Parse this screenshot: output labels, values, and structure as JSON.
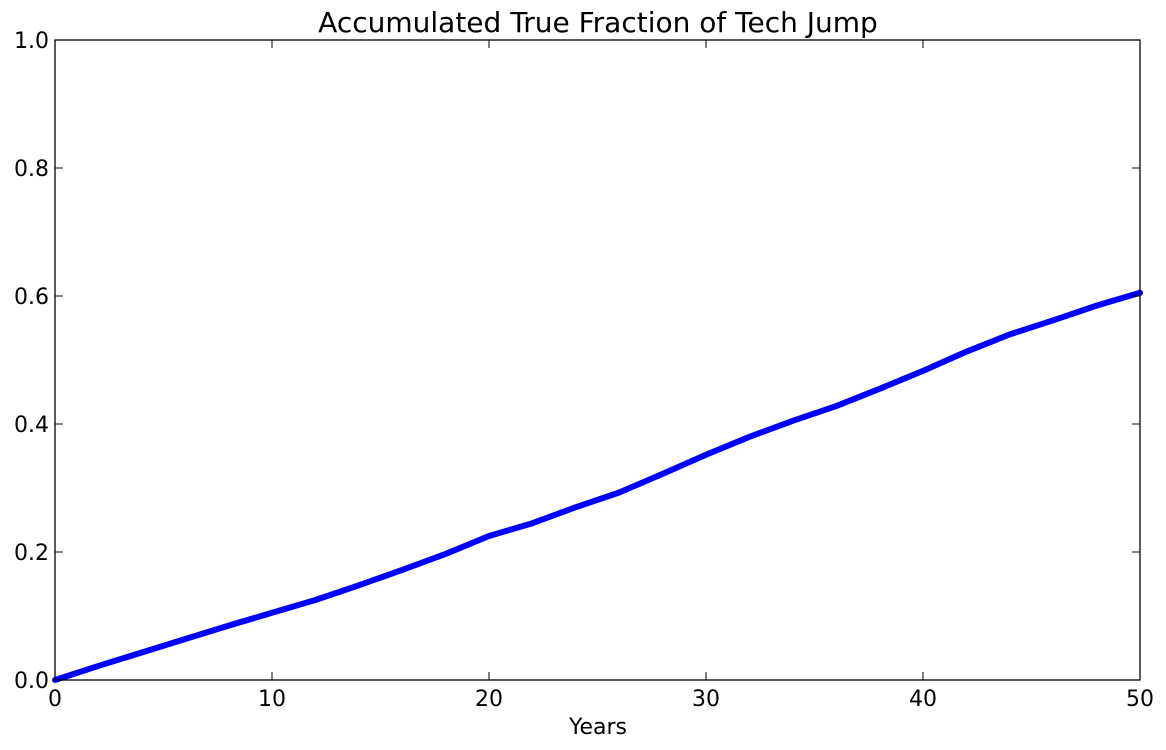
{
  "chart_data": {
    "type": "line",
    "title": "Accumulated True Fraction of Tech Jump",
    "xlabel": "Years",
    "ylabel": "",
    "xlim": [
      0,
      50
    ],
    "ylim": [
      0,
      1.0
    ],
    "x_ticks": [
      0,
      10,
      20,
      30,
      40,
      50
    ],
    "x_tick_labels": [
      "0",
      "10",
      "20",
      "30",
      "40",
      "50"
    ],
    "y_ticks": [
      0,
      0.2,
      0.4,
      0.6,
      0.8,
      1.0
    ],
    "y_tick_labels": [
      "0.0",
      "0.2",
      "0.4",
      "0.6",
      "0.8",
      "1.0"
    ],
    "grid": false,
    "series": [
      {
        "color": "#0000ff",
        "x": [
          0,
          2,
          4,
          6,
          8,
          10,
          12,
          14,
          16,
          18,
          20,
          22,
          24,
          26,
          28,
          30,
          32,
          34,
          36,
          38,
          40,
          42,
          44,
          46,
          48,
          50
        ],
        "y": [
          0.0,
          0.022,
          0.043,
          0.064,
          0.085,
          0.105,
          0.125,
          0.148,
          0.172,
          0.197,
          0.225,
          0.245,
          0.27,
          0.293,
          0.322,
          0.352,
          0.38,
          0.405,
          0.428,
          0.455,
          0.483,
          0.513,
          0.54,
          0.562,
          0.585,
          0.605
        ]
      }
    ]
  }
}
